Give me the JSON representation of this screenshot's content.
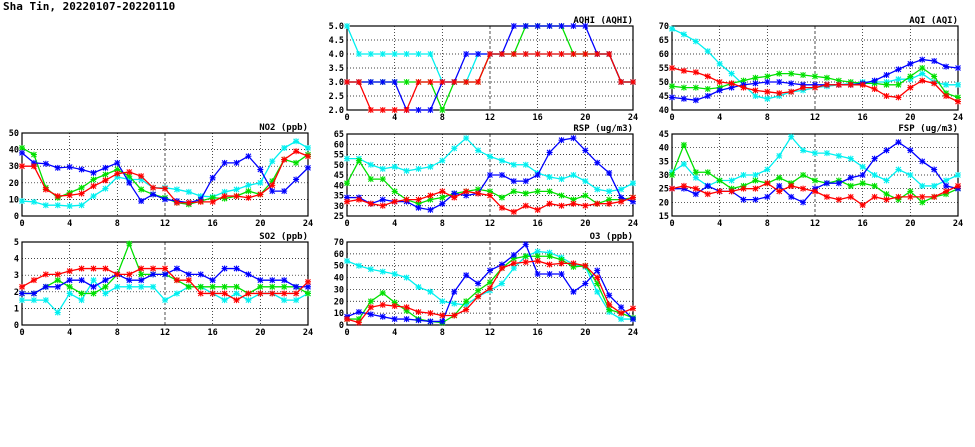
{
  "title": "Sha Tin, 20220107-20220110",
  "series_colors": {
    "cyan": "#00f0f0",
    "green": "#00e000",
    "blue": "#0000ff",
    "red": "#ff0000"
  },
  "chart_data": [
    {
      "type": "line",
      "title": "AQHI (AQHI)",
      "ylim": [
        2,
        5
      ],
      "yticks": [
        "2.0",
        "2.5",
        "3.0",
        "3.5",
        "4.0",
        "4.5",
        "5.0"
      ],
      "xlim": [
        0,
        24
      ],
      "xticks": [
        "0",
        "4",
        "8",
        "12",
        "16",
        "20",
        "24"
      ],
      "grid": true,
      "series": [
        {
          "name": "cyan",
          "values": [
            5,
            4,
            4,
            4,
            4,
            4,
            4,
            4,
            3,
            3,
            3,
            4,
            4,
            4,
            4,
            4,
            4,
            4,
            4,
            4,
            4,
            4,
            4,
            3,
            3
          ]
        },
        {
          "name": "green",
          "values": [
            3,
            3,
            3,
            3,
            3,
            3,
            3,
            3,
            2,
            3,
            3,
            3,
            4,
            4,
            4,
            5,
            5,
            5,
            5,
            4,
            4,
            4,
            4,
            3,
            3
          ]
        },
        {
          "name": "blue",
          "values": [
            3,
            3,
            3,
            3,
            3,
            2,
            2,
            2,
            3,
            3,
            4,
            4,
            4,
            4,
            5,
            5,
            5,
            5,
            5,
            5,
            5,
            4,
            4,
            3,
            3
          ]
        },
        {
          "name": "red",
          "values": [
            3,
            3,
            2,
            2,
            2,
            2,
            3,
            3,
            3,
            3,
            3,
            3,
            4,
            4,
            4,
            4,
            4,
            4,
            4,
            4,
            4,
            4,
            4,
            3,
            3
          ]
        }
      ]
    },
    {
      "type": "line",
      "title": "AQI (AQI)",
      "ylim": [
        40,
        70
      ],
      "yticks": [
        "40",
        "45",
        "50",
        "55",
        "60",
        "65",
        "70"
      ],
      "xlim": [
        0,
        24
      ],
      "xticks": [
        "0",
        "4",
        "8",
        "12",
        "16",
        "20",
        "24"
      ],
      "grid": true,
      "series": [
        {
          "name": "cyan",
          "values": [
            69,
            67,
            64.5,
            61,
            56.5,
            53,
            49,
            45,
            44,
            45,
            46.5,
            47,
            48,
            48.5,
            49,
            49.5,
            50,
            50,
            50,
            51,
            51,
            53,
            50,
            49,
            49
          ]
        },
        {
          "name": "green",
          "values": [
            48.5,
            48,
            48,
            47.5,
            48,
            49.5,
            50.5,
            51.5,
            52,
            53,
            53,
            52.5,
            52,
            51.5,
            50.5,
            50,
            49.5,
            49.5,
            49,
            49,
            52,
            55,
            52,
            46,
            44.5
          ]
        },
        {
          "name": "blue",
          "values": [
            44.5,
            44,
            43.5,
            45,
            47,
            48,
            49,
            49.5,
            50,
            50,
            49.5,
            49,
            49,
            49,
            49,
            49,
            49.5,
            50.5,
            52.5,
            54.5,
            56.5,
            58,
            57.5,
            55.5,
            55
          ]
        },
        {
          "name": "red",
          "values": [
            55,
            54,
            53.5,
            52,
            50,
            49.5,
            48,
            47,
            46.5,
            46,
            46.5,
            48,
            48,
            49,
            49,
            49,
            49,
            47.5,
            45,
            44.5,
            48,
            50.5,
            49.5,
            45,
            43
          ]
        }
      ]
    },
    {
      "type": "line",
      "title": "NO2 (ppb)",
      "ylim": [
        0,
        50
      ],
      "yticks": [
        "0",
        "10",
        "20",
        "30",
        "40",
        "50"
      ],
      "xlim": [
        0,
        24
      ],
      "xticks": [
        "0",
        "4",
        "8",
        "12",
        "16",
        "20",
        "24"
      ],
      "grid": true,
      "series": [
        {
          "name": "cyan",
          "values": [
            9,
            8.5,
            6.5,
            6.5,
            6,
            6.5,
            12,
            16.5,
            23.5,
            22,
            22,
            17,
            17,
            16,
            14.5,
            12,
            11.5,
            14.5,
            16,
            18.5,
            20,
            33,
            41,
            45,
            41
          ]
        },
        {
          "name": "green",
          "values": [
            41,
            37,
            17,
            11,
            14,
            17,
            22,
            25,
            28,
            24,
            16,
            13,
            11,
            8,
            7,
            9,
            11,
            10.5,
            12,
            15,
            13,
            21,
            34,
            32,
            37
          ]
        },
        {
          "name": "blue",
          "values": [
            38,
            32,
            31.5,
            29,
            29.5,
            28,
            26,
            29,
            32,
            20,
            9,
            13,
            10,
            9,
            8,
            10,
            23,
            32,
            32,
            36,
            28,
            15,
            15,
            22,
            29
          ]
        },
        {
          "name": "red",
          "values": [
            30,
            30,
            16,
            12,
            12.5,
            13.5,
            18,
            21.5,
            25.5,
            26.5,
            24,
            17,
            16.5,
            8,
            8,
            8.5,
            8.5,
            12,
            12,
            11,
            13,
            18.5,
            34,
            39,
            36
          ]
        }
      ]
    },
    {
      "type": "line",
      "title": "RSP (ug/m3)",
      "ylim": [
        25,
        65
      ],
      "yticks": [
        "25",
        "30",
        "35",
        "40",
        "45",
        "50",
        "55",
        "60",
        "65"
      ],
      "xlim": [
        0,
        24
      ],
      "xticks": [
        "0",
        "4",
        "8",
        "12",
        "16",
        "20",
        "24"
      ],
      "grid": true,
      "series": [
        {
          "name": "cyan",
          "values": [
            53,
            53,
            50,
            48,
            49,
            47,
            48,
            49,
            52,
            58,
            63,
            57,
            54,
            52,
            50,
            50,
            46,
            44,
            43,
            45,
            42,
            38,
            37,
            38,
            41
          ]
        },
        {
          "name": "green",
          "values": [
            41,
            52,
            43,
            43,
            37,
            33,
            31,
            33,
            34,
            36,
            37,
            38,
            37,
            34,
            37,
            36,
            37,
            37,
            35,
            33,
            35,
            31,
            33,
            33,
            34
          ]
        },
        {
          "name": "blue",
          "values": [
            34,
            34,
            31,
            33,
            32,
            32,
            29,
            28,
            31,
            36,
            35,
            36,
            45,
            45,
            42,
            42,
            45,
            56,
            62,
            63,
            57,
            51,
            46,
            34,
            32
          ]
        },
        {
          "name": "red",
          "values": [
            32,
            33,
            31,
            30,
            32,
            33,
            33,
            35,
            37,
            34,
            37,
            36,
            35,
            29,
            27,
            30,
            28,
            31,
            30,
            31,
            30,
            31,
            31,
            32,
            34
          ]
        }
      ]
    },
    {
      "type": "line",
      "title": "FSP (ug/m3)",
      "ylim": [
        15,
        45
      ],
      "yticks": [
        "15",
        "20",
        "25",
        "30",
        "35",
        "40",
        "45"
      ],
      "xlim": [
        0,
        24
      ],
      "xticks": [
        "0",
        "4",
        "8",
        "12",
        "16",
        "20",
        "24"
      ],
      "grid": true,
      "series": [
        {
          "name": "cyan",
          "values": [
            31,
            34,
            29,
            26,
            28,
            28,
            30,
            30,
            32,
            37,
            44,
            39,
            38,
            38,
            37,
            36,
            33,
            30,
            28,
            32,
            30,
            26,
            26,
            28,
            30
          ]
        },
        {
          "name": "green",
          "values": [
            30,
            41,
            31,
            31,
            28,
            25,
            26,
            28,
            27,
            29,
            27,
            30,
            28,
            27,
            28,
            26,
            27,
            26,
            23,
            21,
            24,
            20,
            22,
            23,
            25
          ]
        },
        {
          "name": "blue",
          "values": [
            25,
            25,
            23,
            26,
            24,
            24,
            21,
            21,
            22,
            26,
            22,
            20,
            25,
            27,
            27,
            29,
            30,
            36,
            39,
            42,
            39,
            35,
            32,
            26,
            25
          ]
        },
        {
          "name": "red",
          "values": [
            25,
            26,
            25,
            23,
            24,
            24,
            25,
            25,
            27,
            24,
            26,
            25,
            24,
            22,
            21,
            22,
            19,
            22,
            21,
            22,
            22,
            22,
            22,
            24,
            26
          ]
        }
      ]
    },
    {
      "type": "line",
      "title": "SO2 (ppb)",
      "ylim": [
        0,
        5
      ],
      "yticks": [
        "0",
        "1",
        "2",
        "3",
        "4",
        "5"
      ],
      "xlim": [
        0,
        24
      ],
      "xticks": [
        "0",
        "4",
        "8",
        "12",
        "16",
        "20",
        "24"
      ],
      "grid": true,
      "series": [
        {
          "name": "cyan",
          "values": [
            1.5,
            1.5,
            1.5,
            0.75,
            1.9,
            1.5,
            2.7,
            1.9,
            2.3,
            2.3,
            2.3,
            2.3,
            1.5,
            1.9,
            2.3,
            2.3,
            1.9,
            1.5,
            1.9,
            1.5,
            1.9,
            1.9,
            1.5,
            1.5,
            1.9
          ]
        },
        {
          "name": "green",
          "values": [
            1.9,
            1.9,
            2.3,
            2.7,
            2.3,
            1.9,
            1.9,
            2.3,
            3.05,
            4.9,
            3.05,
            3.05,
            3.05,
            2.7,
            2.3,
            2.3,
            2.3,
            2.3,
            2.3,
            1.9,
            2.3,
            2.3,
            2.3,
            2.3,
            1.9
          ]
        },
        {
          "name": "blue",
          "values": [
            1.9,
            1.9,
            2.3,
            2.3,
            2.7,
            2.7,
            2.3,
            2.7,
            3.05,
            2.7,
            2.7,
            3.05,
            3.05,
            3.4,
            3.05,
            3.05,
            2.7,
            3.4,
            3.4,
            3.05,
            2.7,
            2.7,
            2.7,
            2.3,
            2.3
          ]
        },
        {
          "name": "red",
          "values": [
            2.3,
            2.7,
            3.05,
            3.05,
            3.25,
            3.4,
            3.4,
            3.4,
            3.05,
            3.05,
            3.4,
            3.4,
            3.4,
            2.7,
            2.7,
            1.9,
            1.9,
            1.9,
            1.5,
            1.9,
            1.9,
            1.9,
            1.9,
            1.9,
            2.6
          ]
        }
      ]
    },
    {
      "type": "line",
      "title": "O3 (ppb)",
      "ylim": [
        0,
        70
      ],
      "yticks": [
        "0",
        "10",
        "20",
        "30",
        "40",
        "50",
        "60",
        "70"
      ],
      "xlim": [
        0,
        24
      ],
      "xticks": [
        "0",
        "4",
        "8",
        "12",
        "16",
        "20",
        "24"
      ],
      "grid": true,
      "series": [
        {
          "name": "cyan",
          "values": [
            54,
            50,
            47,
            45,
            43,
            40,
            32,
            28,
            20,
            18,
            17,
            24,
            29,
            35,
            48,
            58,
            62,
            61,
            57,
            51,
            49,
            28,
            11,
            5,
            5
          ]
        },
        {
          "name": "green",
          "values": [
            5,
            5,
            20,
            27,
            19,
            12,
            5,
            3,
            2,
            8,
            20,
            29,
            36,
            48,
            56,
            58,
            58,
            58,
            55,
            49,
            50,
            35,
            13,
            10,
            6
          ]
        },
        {
          "name": "blue",
          "values": [
            7,
            11,
            9,
            7,
            5,
            5,
            4,
            3,
            3,
            28,
            42,
            35,
            46,
            51,
            59,
            68,
            43,
            43,
            43,
            28,
            35,
            46,
            25,
            15,
            5
          ]
        },
        {
          "name": "red",
          "values": [
            5,
            2,
            15,
            17,
            16,
            15,
            11,
            10,
            8,
            8,
            13,
            24,
            31,
            48,
            52,
            53,
            54,
            51,
            52,
            52,
            50,
            40,
            17,
            10,
            14
          ]
        }
      ]
    }
  ]
}
